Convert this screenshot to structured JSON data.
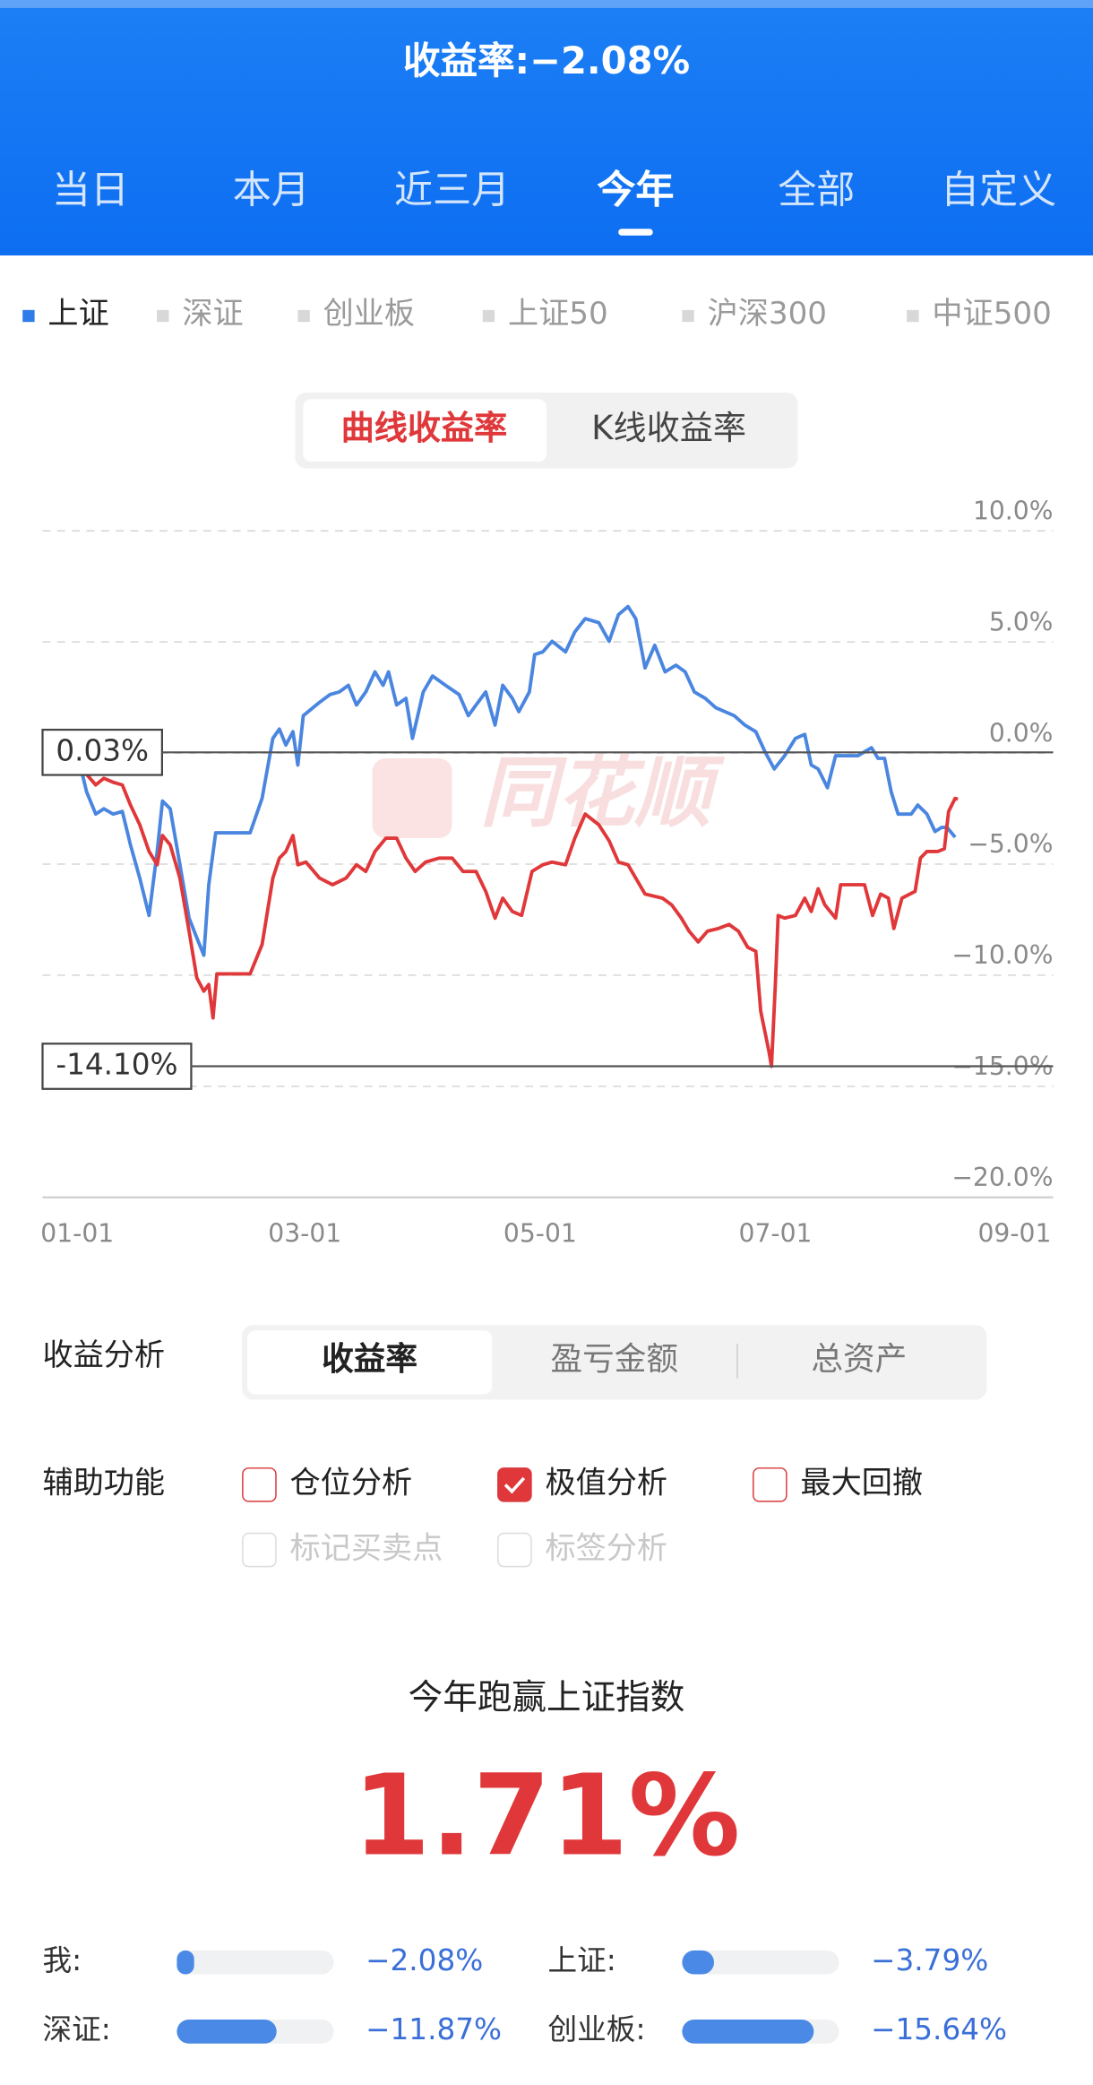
{
  "header": {
    "title": "收益率:−2.08%",
    "tabs": [
      "当日",
      "本月",
      "近三月",
      "今年",
      "全部",
      "自定义"
    ],
    "selected_tab": 3
  },
  "indices": {
    "items": [
      "上证",
      "深证",
      "创业板",
      "上证50",
      "沪深300",
      "中证500"
    ],
    "selected": 0
  },
  "mode_toggle": {
    "options": [
      "曲线收益率",
      "K线收益率"
    ],
    "selected": 0
  },
  "chart_data": {
    "type": "line",
    "watermark": "同花顺",
    "xlim": [
      -9,
      253
    ],
    "ylim": [
      -20,
      10
    ],
    "xticks": [
      {
        "value": 0,
        "label": "01-01"
      },
      {
        "value": 59,
        "label": "03-01"
      },
      {
        "value": 120,
        "label": "05-01"
      },
      {
        "value": 181,
        "label": "07-01"
      },
      {
        "value": 243,
        "label": "09-01"
      }
    ],
    "yticks": [
      {
        "value": 10,
        "label": "10.0%"
      },
      {
        "value": 5,
        "label": "5.0%"
      },
      {
        "value": 0,
        "label": "0.0%"
      },
      {
        "value": -5,
        "label": "−5.0%"
      },
      {
        "value": -10,
        "label": "−10.0%"
      },
      {
        "value": -15,
        "label": "−15.0%"
      },
      {
        "value": -20,
        "label": "−20.0%"
      }
    ],
    "grid": true,
    "annotations": [
      {
        "value": 0.03,
        "label": "0.03%"
      },
      {
        "value": -14.1,
        "label": "-14.10%"
      }
    ],
    "series": [
      {
        "color": "#4a86e0",
        "x": [
          0,
          2.4,
          4.8,
          6.9,
          9.3,
          11.7,
          13.8,
          16.2,
          18.6,
          20.7,
          22.1,
          24.1,
          26.6,
          29,
          31,
          32.8,
          34.1,
          35.9,
          40.3,
          44.8,
          47.9,
          50.7,
          52.4,
          54.1,
          55.9,
          57.2,
          58.6,
          62.8,
          65.5,
          67.9,
          70.3,
          72.4,
          74.8,
          77.2,
          79.3,
          80.7,
          82.8,
          85.2,
          86.9,
          89.7,
          92.1,
          95.5,
          99,
          101.4,
          103.4,
          105.9,
          108.3,
          110.3,
          112.8,
          114.5,
          117.2,
          118.6,
          120.7,
          123.1,
          126.6,
          129,
          131.7,
          135.2,
          137.9,
          140.3,
          142.8,
          144.8,
          147.2,
          149.7,
          152.4,
          155.2,
          157.6,
          160,
          162.8,
          165.5,
          167.9,
          170.3,
          173.1,
          175.9,
          178.3,
          180.7,
          183.4,
          186.2,
          188.6,
          190.3,
          192.1,
          194.5,
          196.6,
          199,
          202.4,
          205.9,
          207.6,
          209.3,
          211,
          212.8,
          216.2,
          217.9,
          220.3,
          222.4,
          224.1,
          225.5,
          227.6
        ],
        "values": [
          0,
          -1.74,
          -2.75,
          -2.51,
          -2.75,
          -2.63,
          -4.13,
          -5.63,
          -7.31,
          -4.43,
          -2.16,
          -2.51,
          -5.03,
          -7.43,
          -8.32,
          -9.1,
          -5.93,
          -3.59,
          -3.59,
          -3.59,
          -2.04,
          0.66,
          1.08,
          0.36,
          0.96,
          -0.54,
          1.68,
          2.28,
          2.63,
          2.75,
          3.05,
          2.16,
          2.75,
          3.65,
          3.05,
          3.65,
          2.16,
          2.46,
          0.66,
          2.75,
          3.47,
          3.05,
          2.63,
          1.68,
          2.16,
          2.75,
          1.26,
          3.05,
          2.46,
          1.86,
          2.75,
          4.43,
          4.55,
          5.03,
          4.55,
          5.45,
          6.05,
          5.87,
          5.03,
          6.23,
          6.59,
          6.05,
          3.83,
          4.85,
          3.65,
          3.95,
          3.65,
          2.75,
          2.46,
          2.04,
          1.86,
          1.68,
          1.26,
          0.96,
          0.06,
          -0.72,
          -0.12,
          0.66,
          0.84,
          -0.54,
          -0.72,
          -1.56,
          -0.12,
          -0.12,
          -0.12,
          0.24,
          -0.24,
          -0.24,
          -1.74,
          -2.75,
          -2.75,
          -2.34,
          -2.75,
          -3.53,
          -3.35,
          -3.35,
          -3.79
        ]
      },
      {
        "color": "#e0383a",
        "x": [
          0,
          2.4,
          4.8,
          6.9,
          9.3,
          11.7,
          13.8,
          16.2,
          18.6,
          20.7,
          22.1,
          24.1,
          26.6,
          29,
          31,
          32.8,
          34.1,
          35.2,
          36.2,
          40.3,
          44.8,
          47.9,
          50.7,
          52.4,
          54.1,
          55.9,
          57.2,
          59.3,
          62.8,
          66.2,
          69.7,
          72.4,
          74.8,
          77.2,
          80,
          82.8,
          85.2,
          87.6,
          90.3,
          93.8,
          97.2,
          100,
          103.4,
          105.9,
          108.3,
          110.3,
          112.8,
          115.2,
          117.9,
          120.7,
          123.1,
          126.6,
          129,
          131.7,
          135.2,
          137.9,
          140.3,
          142.8,
          144.8,
          147.2,
          151.7,
          154.1,
          156.6,
          158.6,
          161,
          163.4,
          166.2,
          169,
          171.4,
          173.8,
          175.9,
          177.2,
          179.3,
          180,
          181,
          181.7,
          183.4,
          186.2,
          188.6,
          190.3,
          192.1,
          193.8,
          196.6,
          197.9,
          200.7,
          204.1,
          206.2,
          208.3,
          210.3,
          211.7,
          213.8,
          217.2,
          218.6,
          220.3,
          223.1,
          224.8,
          225.9,
          227.6,
          228.3
        ],
        "values": [
          0.03,
          -0.96,
          -1.44,
          -1.14,
          -1.32,
          -1.44,
          -2.34,
          -3.23,
          -4.43,
          -5.03,
          -3.71,
          -4.13,
          -5.63,
          -8.02,
          -10.12,
          -10.72,
          -10.42,
          -11.92,
          -9.94,
          -9.94,
          -9.94,
          -8.62,
          -5.63,
          -4.73,
          -4.43,
          -3.71,
          -5.03,
          -4.91,
          -5.63,
          -5.93,
          -5.63,
          -5.03,
          -5.33,
          -4.43,
          -3.83,
          -3.83,
          -4.73,
          -5.33,
          -4.91,
          -4.73,
          -4.73,
          -5.33,
          -5.33,
          -6.23,
          -7.43,
          -6.53,
          -7.13,
          -7.31,
          -5.33,
          -5.03,
          -4.91,
          -5.03,
          -3.83,
          -2.75,
          -3.23,
          -3.95,
          -4.91,
          -5.03,
          -5.63,
          -6.35,
          -6.53,
          -6.83,
          -7.43,
          -8.02,
          -8.5,
          -8.02,
          -7.9,
          -7.72,
          -8.02,
          -8.74,
          -8.92,
          -11.62,
          -13.41,
          -14.1,
          -10.42,
          -7.31,
          -7.43,
          -7.31,
          -6.53,
          -7.13,
          -6.11,
          -6.83,
          -7.43,
          -5.93,
          -5.93,
          -5.93,
          -7.31,
          -6.35,
          -6.53,
          -7.9,
          -6.53,
          -6.23,
          -4.73,
          -4.43,
          -4.43,
          -4.31,
          -2.63,
          -2.04,
          -2.08
        ]
      }
    ]
  },
  "analysis": {
    "label": "收益分析",
    "options": [
      "收益率",
      "盈亏金额",
      "总资产"
    ],
    "selected": 0
  },
  "assist": {
    "label": "辅助功能",
    "options": [
      {
        "label": "仓位分析",
        "checked": false,
        "enabled": true
      },
      {
        "label": "极值分析",
        "checked": true,
        "enabled": true
      },
      {
        "label": "最大回撤",
        "checked": false,
        "enabled": true
      },
      {
        "label": "标记买卖点",
        "checked": false,
        "enabled": false
      },
      {
        "label": "标签分析",
        "checked": false,
        "enabled": false
      }
    ]
  },
  "summary": {
    "title": "今年跑赢上证指数",
    "value": "1.71%"
  },
  "comparison": [
    {
      "name": "我:",
      "value": -2.08,
      "label": "−2.08%"
    },
    {
      "name": "上证:",
      "value": -3.79,
      "label": "−3.79%"
    },
    {
      "name": "深证:",
      "value": -11.87,
      "label": "−11.87%"
    },
    {
      "name": "创业板:",
      "value": -15.64,
      "label": "−15.64%"
    }
  ]
}
